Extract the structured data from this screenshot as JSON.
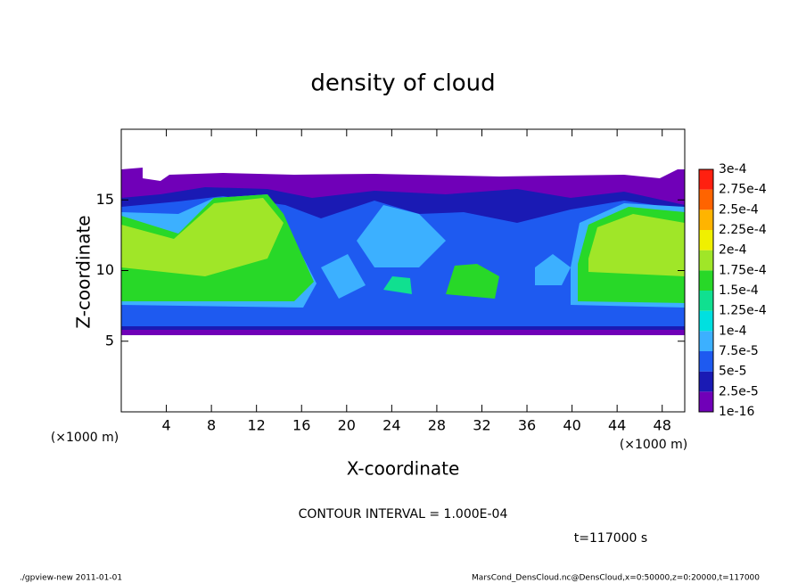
{
  "chart_data": {
    "type": "heatmap",
    "title": "density of cloud",
    "x_label": "X-coordinate",
    "y_label": "Z-coordinate",
    "axis_unit": "(×1000 m)",
    "xlim": [
      0,
      50
    ],
    "xticks": [
      4,
      8,
      12,
      16,
      20,
      24,
      28,
      32,
      36,
      40,
      44,
      48
    ],
    "ylim": [
      0,
      20
    ],
    "yticks": [
      5,
      10,
      15
    ],
    "colorbar": {
      "levels": [
        {
          "value": 1e-16,
          "label": "1e-16"
        },
        {
          "value": 2.5e-05,
          "label": "2.5e-5"
        },
        {
          "value": 5e-05,
          "label": "5e-5"
        },
        {
          "value": 7.5e-05,
          "label": "7.5e-5"
        },
        {
          "value": 0.0001,
          "label": "1e-4"
        },
        {
          "value": 0.000125,
          "label": "1.25e-4"
        },
        {
          "value": 0.00015,
          "label": "1.5e-4"
        },
        {
          "value": 0.000175,
          "label": "1.75e-4"
        },
        {
          "value": 0.0002,
          "label": "2e-4"
        },
        {
          "value": 0.000225,
          "label": "2.25e-4"
        },
        {
          "value": 0.00025,
          "label": "2.5e-4"
        },
        {
          "value": 0.000275,
          "label": "2.75e-4"
        },
        {
          "value": 0.0003,
          "label": "3e-4"
        }
      ],
      "colors": [
        "#7000b8",
        "#1a1ab4",
        "#1e5af0",
        "#3cb0ff",
        "#00e0e0",
        "#10e090",
        "#28d828",
        "#a0e628",
        "#f0f000",
        "#ffb400",
        "#ff6400",
        "#ff2010",
        "#ff8888"
      ]
    },
    "contour_note": "CONTOUR INTERVAL = 1.000E-04",
    "time_label": "t=117000 s",
    "footer_left": "./gpview-new  2011-01-01",
    "footer_right": "MarsCond_DensCloud.nc@DensCloud,x=0:50000,z=0:20000,t=117000"
  }
}
